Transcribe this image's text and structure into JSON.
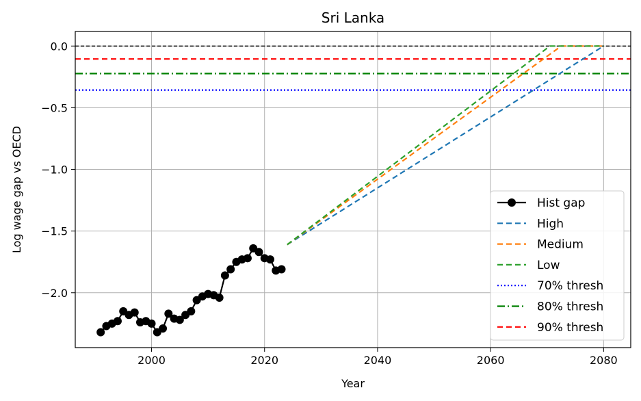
{
  "chart_data": {
    "type": "line",
    "title": "Sri Lanka",
    "xlabel": "Year",
    "ylabel": "Log wage gap vs OECD",
    "xlim": [
      1986.5,
      2084.8
    ],
    "ylim": [
      -2.445,
      0.118
    ],
    "xticks": [
      2000,
      2020,
      2040,
      2060,
      2080
    ],
    "xtick_labels": [
      "2000",
      "2020",
      "2040",
      "2060",
      "2080"
    ],
    "yticks": [
      0.0,
      -0.5,
      -1.0,
      -1.5,
      -2.0
    ],
    "ytick_labels": [
      "0.0",
      "−0.5",
      "−1.0",
      "−1.5",
      "−2.0"
    ],
    "grid": true,
    "legend_position": "lower right",
    "series": [
      {
        "name": "Hist gap",
        "style": "solid-marker",
        "color": "#000000",
        "x": [
          1991,
          1992,
          1993,
          1994,
          1995,
          1996,
          1997,
          1998,
          1999,
          2000,
          2001,
          2002,
          2003,
          2004,
          2005,
          2006,
          2007,
          2008,
          2009,
          2010,
          2011,
          2012,
          2013,
          2014,
          2015,
          2016,
          2017,
          2018,
          2019,
          2020,
          2021,
          2022,
          2023
        ],
        "y": [
          -2.32,
          -2.27,
          -2.25,
          -2.23,
          -2.15,
          -2.18,
          -2.16,
          -2.24,
          -2.23,
          -2.25,
          -2.32,
          -2.29,
          -2.17,
          -2.21,
          -2.22,
          -2.18,
          -2.15,
          -2.06,
          -2.03,
          -2.01,
          -2.02,
          -2.04,
          -1.86,
          -1.81,
          -1.75,
          -1.73,
          -1.72,
          -1.64,
          -1.67,
          -1.72,
          -1.73,
          -1.82,
          -1.81
        ]
      },
      {
        "name": "High",
        "style": "dashed",
        "color": "#1f77b4",
        "x": [
          2024,
          2080
        ],
        "y": [
          -1.61,
          0.0
        ]
      },
      {
        "name": "Medium",
        "style": "dashed",
        "color": "#ff7f0e",
        "x": [
          2024,
          2072.5,
          2080
        ],
        "y": [
          -1.61,
          0.0,
          0.0
        ]
      },
      {
        "name": "Low",
        "style": "dashed",
        "color": "#2ca02c",
        "x": [
          2024,
          2070.5,
          2080
        ],
        "y": [
          -1.61,
          0.0,
          0.0
        ]
      }
    ],
    "reference_lines": [
      {
        "name": "",
        "y": 0.0,
        "style": "dashed-thin",
        "color": "#000000"
      },
      {
        "name": "70% thresh",
        "y": -0.357,
        "style": "dotted",
        "color": "#0000ff"
      },
      {
        "name": "80% thresh",
        "y": -0.223,
        "style": "dashdot",
        "color": "#008000"
      },
      {
        "name": "90% thresh",
        "y": -0.105,
        "style": "dashed",
        "color": "#ff0000"
      }
    ],
    "legend": [
      "Hist gap",
      "High",
      "Medium",
      "Low",
      "70% thresh",
      "80% thresh",
      "90% thresh"
    ]
  }
}
